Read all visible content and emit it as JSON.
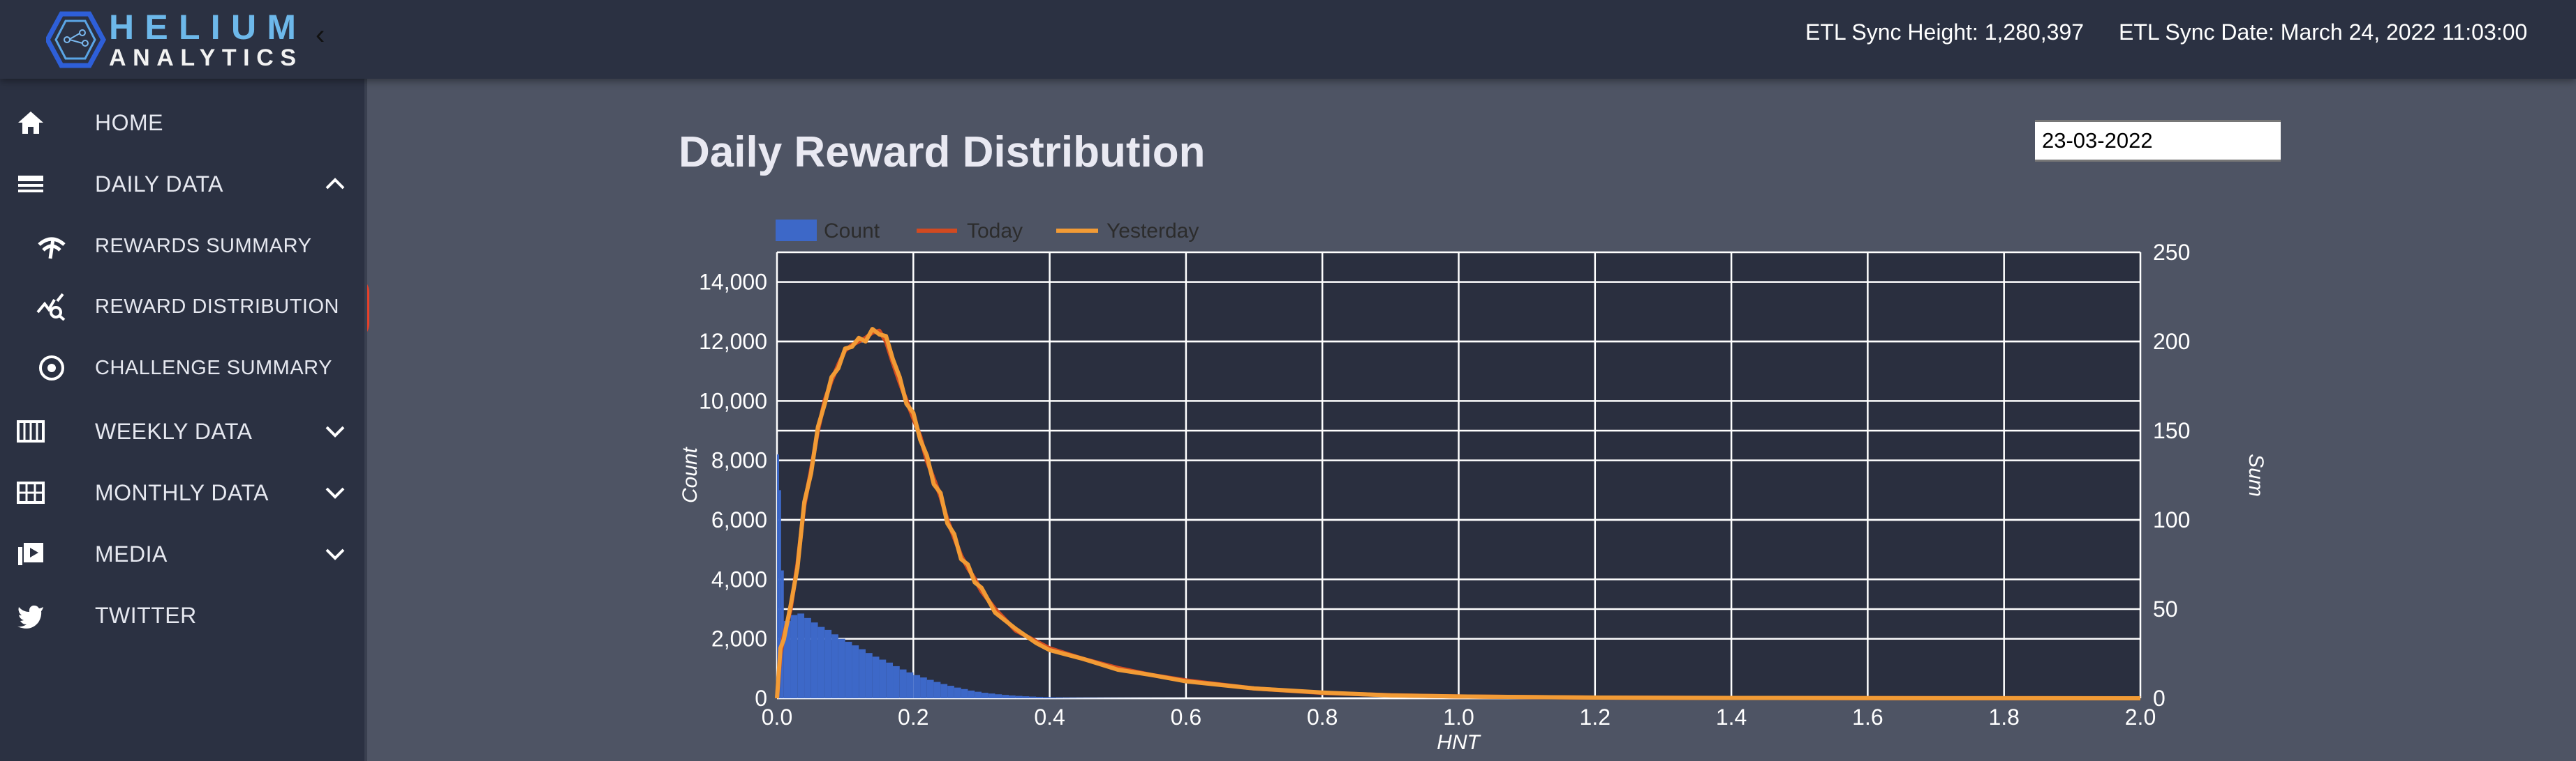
{
  "app": {
    "logo_line1": "HELIUM",
    "logo_line2": "ANALYTICS"
  },
  "header": {
    "sync_height": "ETL Sync Height: 1,280,397",
    "sync_date": "ETL Sync Date: March 24, 2022 11:03:00"
  },
  "sidebar": {
    "items": [
      {
        "label": "HOME",
        "icon": "home-icon"
      },
      {
        "label": "DAILY DATA",
        "icon": "menu-icon",
        "expanded": true
      },
      {
        "label": "REWARDS SUMMARY",
        "icon": "gauge-icon"
      },
      {
        "label": "REWARD DISTRIBUTION",
        "icon": "chart-search-icon",
        "active": true
      },
      {
        "label": "CHALLENGE SUMMARY",
        "icon": "target-icon"
      },
      {
        "label": "WEEKLY DATA",
        "icon": "calendar-week-icon"
      },
      {
        "label": "MONTHLY DATA",
        "icon": "grid-icon"
      },
      {
        "label": "MEDIA",
        "icon": "video-icon"
      },
      {
        "label": "TWITTER",
        "icon": "twitter-icon"
      }
    ]
  },
  "main": {
    "title": "Daily Reward Distribution",
    "date_value": "23-03-2022"
  },
  "colors": {
    "count": "#3d68c8",
    "today": "#d24a21",
    "yesterday": "#f29b35",
    "plot_bg": "#2a2f3f",
    "highlight": "#e8412a"
  },
  "chart_data": {
    "type": "bar+line",
    "title": "",
    "xlabel": "HNT",
    "ylabel": "Count",
    "y2label": "Sum",
    "xlim": [
      0,
      2.0
    ],
    "ylim": [
      0,
      15000
    ],
    "y2lim": [
      0,
      250
    ],
    "grid": true,
    "legend": "top-left",
    "x_ticks": [
      "0.0",
      "0.2",
      "0.4",
      "0.6",
      "0.8",
      "1.0",
      "1.2",
      "1.4",
      "1.6",
      "1.8",
      "2.0"
    ],
    "y_ticks": [
      "0",
      "2,000",
      "4,000",
      "6,000",
      "8,000",
      "10,000",
      "12,000",
      "14,000"
    ],
    "y2_ticks": [
      "0",
      "50",
      "100",
      "150",
      "200",
      "250"
    ],
    "histogram": {
      "name": "Count",
      "bin_edges": [
        0,
        0.003,
        0.006,
        0.01,
        0.02,
        0.03,
        0.04,
        0.05,
        0.06,
        0.07,
        0.08,
        0.09,
        0.1,
        0.11,
        0.12,
        0.13,
        0.14,
        0.15,
        0.16,
        0.17,
        0.18,
        0.19,
        0.2,
        0.21,
        0.22,
        0.23,
        0.24,
        0.25,
        0.26,
        0.27,
        0.28,
        0.29,
        0.3,
        0.31,
        0.32,
        0.33,
        0.34,
        0.35,
        0.36,
        0.37,
        0.38,
        0.39,
        0.4,
        0.41,
        0.42,
        0.43,
        0.44,
        0.45,
        0.46,
        0.47,
        0.48,
        0.49,
        0.5,
        0.51,
        0.52,
        0.53,
        0.54,
        0.55,
        0.56,
        0.57,
        0.58,
        0.59,
        0.6
      ],
      "counts": [
        8200,
        7000,
        4300,
        2600,
        2800,
        2850,
        2700,
        2550,
        2400,
        2300,
        2150,
        2000,
        1900,
        1780,
        1650,
        1520,
        1400,
        1300,
        1200,
        1080,
        970,
        870,
        780,
        700,
        620,
        550,
        480,
        420,
        360,
        310,
        260,
        220,
        185,
        160,
        135,
        115,
        95,
        80,
        68,
        57,
        48,
        40,
        33,
        28,
        24,
        21,
        18,
        16,
        14,
        12,
        10,
        9,
        8,
        7,
        6,
        5,
        5,
        4,
        4,
        3,
        3,
        2
      ]
    },
    "x": [
      0,
      0.005,
      0.01,
      0.02,
      0.03,
      0.04,
      0.05,
      0.06,
      0.07,
      0.08,
      0.09,
      0.1,
      0.11,
      0.12,
      0.13,
      0.14,
      0.15,
      0.16,
      0.17,
      0.18,
      0.19,
      0.2,
      0.21,
      0.22,
      0.23,
      0.24,
      0.25,
      0.26,
      0.27,
      0.28,
      0.29,
      0.3,
      0.32,
      0.35,
      0.38,
      0.4,
      0.45,
      0.5,
      0.55,
      0.6,
      0.7,
      0.8,
      0.9,
      1.0,
      1.2,
      1.4,
      1.6,
      1.8,
      2.0
    ],
    "series": [
      {
        "name": "Today",
        "axis": "y2",
        "values": [
          0,
          25,
          35,
          50,
          75,
          108,
          128,
          150,
          167,
          178,
          187,
          195,
          198,
          200,
          202,
          205,
          206,
          200,
          188,
          177,
          167,
          157,
          147,
          133,
          123,
          113,
          100,
          90,
          80,
          73,
          67,
          60,
          50,
          38,
          32,
          28,
          22,
          17,
          13,
          10,
          5.5,
          3,
          1.7,
          1,
          0.4,
          0.2,
          0.1,
          0.05,
          0
        ]
      },
      {
        "name": "Yesterday",
        "axis": "y2",
        "values": [
          0,
          28,
          33,
          52,
          73,
          110,
          126,
          152,
          165,
          180,
          185,
          196,
          197,
          202,
          200,
          207,
          204,
          203,
          190,
          180,
          165,
          160,
          145,
          136,
          120,
          115,
          98,
          92,
          78,
          75,
          65,
          62,
          48,
          39,
          31,
          27,
          22,
          16,
          13,
          9.5,
          5.5,
          3.2,
          1.6,
          1,
          0.4,
          0.2,
          0.1,
          0.05,
          0
        ]
      }
    ]
  }
}
